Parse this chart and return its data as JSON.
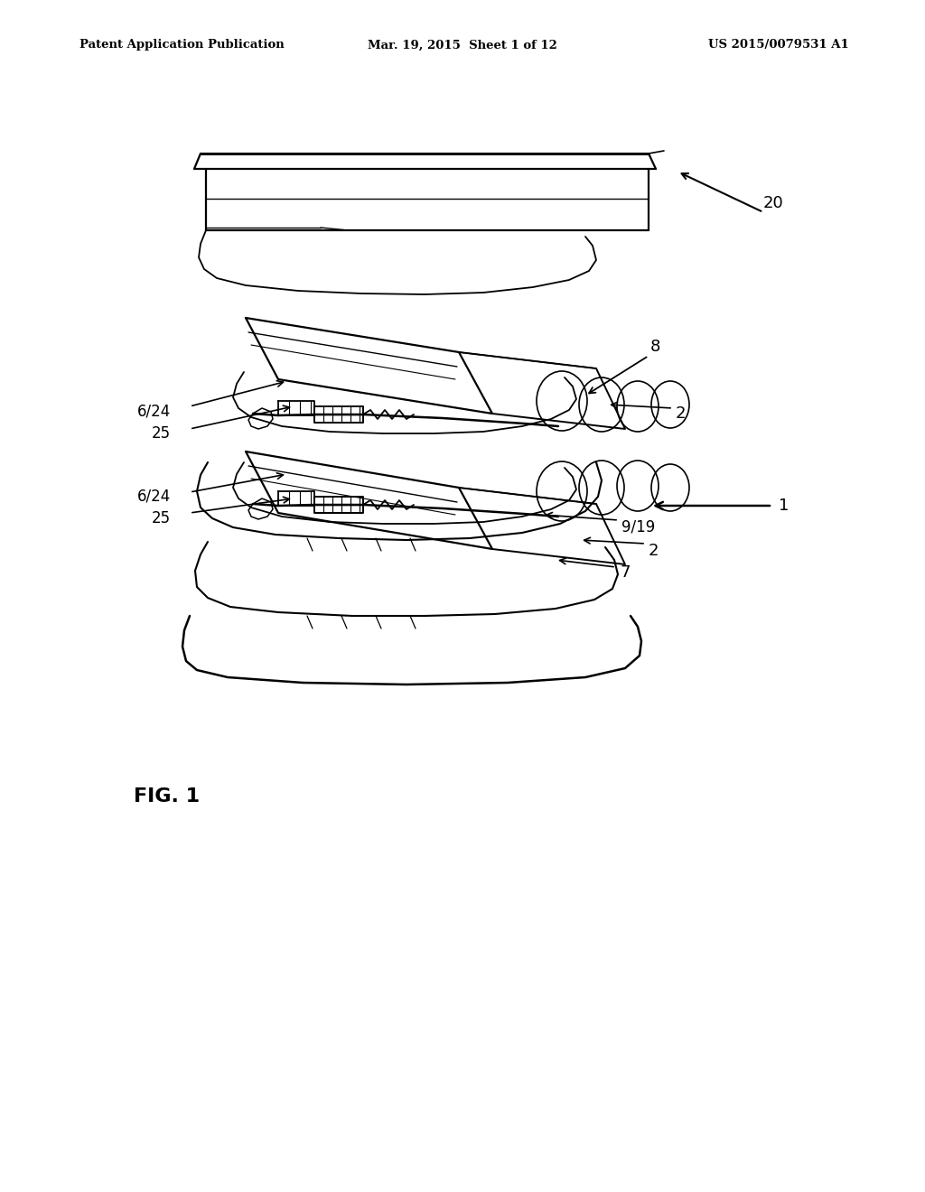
{
  "background_color": "#ffffff",
  "header_left": "Patent Application Publication",
  "header_center": "Mar. 19, 2015  Sheet 1 of 12",
  "header_right": "US 2015/0079531 A1",
  "figure_label": "FIG. 1",
  "text_color": "#000000",
  "line_color": "#000000"
}
